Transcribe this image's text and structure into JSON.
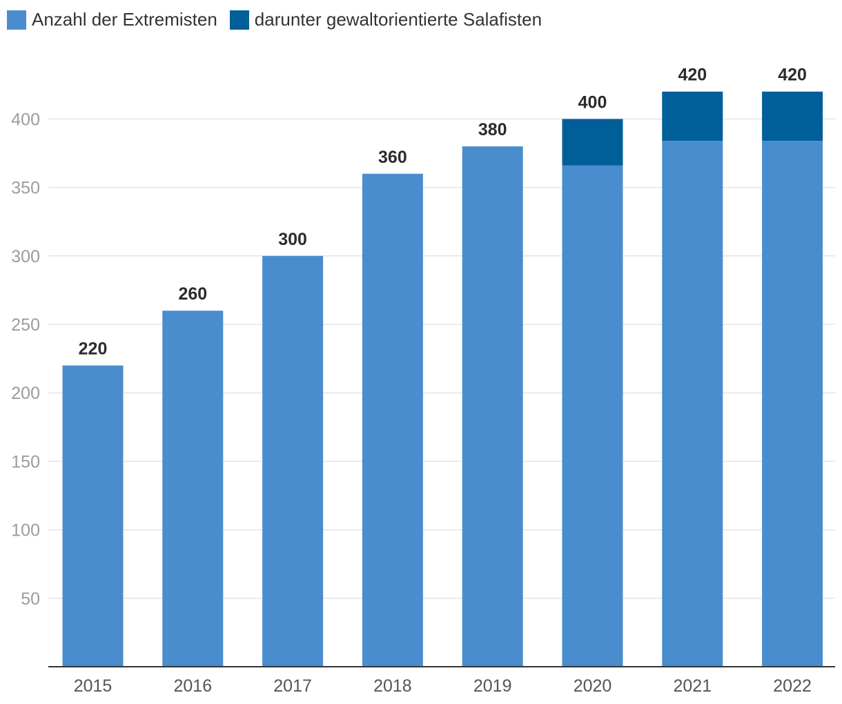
{
  "colors": {
    "series1": "#4a8dce",
    "series2": "#005f99",
    "grid": "#e3e3e3",
    "axis": "#333333"
  },
  "chart_data": {
    "type": "bar",
    "stacked": true,
    "title": "",
    "xlabel": "",
    "ylabel": "",
    "categories": [
      "2015",
      "2016",
      "2017",
      "2018",
      "2019",
      "2020",
      "2021",
      "2022"
    ],
    "series": [
      {
        "name": "Anzahl der Extremisten",
        "values": [
          220,
          260,
          300,
          360,
          380,
          366,
          384,
          384
        ]
      },
      {
        "name": "darunter gewaltorientierte Salafisten",
        "values": [
          0,
          0,
          0,
          0,
          0,
          34,
          36,
          36
        ]
      }
    ],
    "totals": [
      "220",
      "260",
      "300",
      "360",
      "380",
      "400",
      "420",
      "420"
    ],
    "yticks": [
      "50",
      "100",
      "150",
      "200",
      "250",
      "300",
      "350",
      "400"
    ],
    "ylim": [
      0,
      430
    ],
    "grid": true,
    "legend_position": "top-left"
  }
}
